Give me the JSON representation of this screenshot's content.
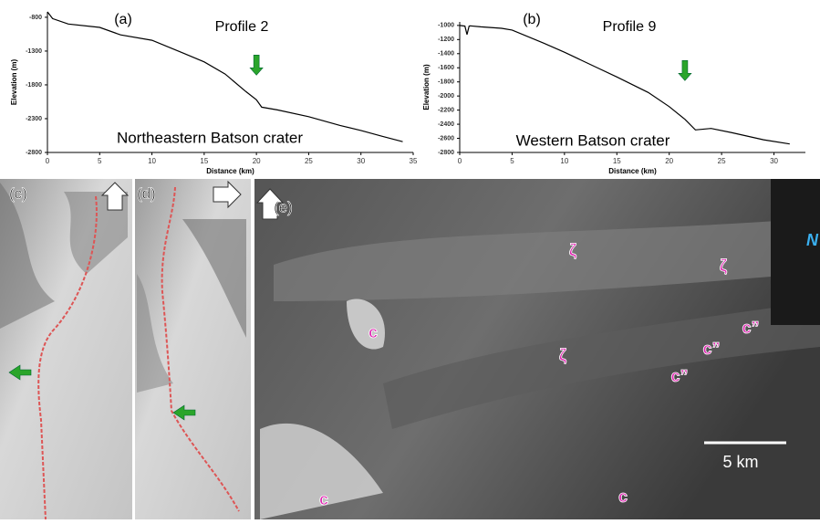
{
  "chart_data": [
    {
      "type": "line",
      "panel_label": "(a)",
      "title": "Profile 2",
      "annotation": "Northeastern Batson crater",
      "x_label": "Distance (km)",
      "y_label": "Elevation (m)",
      "color": "#000000",
      "x": [
        0,
        0.5,
        2,
        5,
        7,
        10,
        13,
        15,
        17,
        19,
        20,
        20.5,
        22,
        25,
        28,
        30,
        32,
        34
      ],
      "values": [
        -720,
        -820,
        -900,
        -950,
        -1060,
        -1140,
        -1330,
        -1460,
        -1640,
        -1900,
        -2020,
        -2130,
        -2170,
        -2270,
        -2400,
        -2475,
        -2560,
        -2640
      ],
      "xlim": [
        0,
        35
      ],
      "xticks": [
        0,
        5,
        10,
        15,
        20,
        25,
        30,
        35
      ],
      "ylim": [
        -2800,
        -720
      ],
      "yticks": [
        -800,
        -1300,
        -1800,
        -2300,
        -2800
      ]
    },
    {
      "type": "line",
      "panel_label": "(b)",
      "title": "Profile 9",
      "annotation": "Western Batson crater",
      "x_label": "Distance (km)",
      "y_label": "Elevation (m)",
      "color": "#000000",
      "x": [
        0,
        0.5,
        0.7,
        0.9,
        1,
        2,
        4,
        5,
        8,
        10,
        13,
        15,
        18,
        20,
        21.5,
        22.5,
        24,
        26,
        29,
        31.5
      ],
      "values": [
        -1000,
        -1010,
        -1130,
        -1010,
        -1005,
        -1020,
        -1040,
        -1065,
        -1250,
        -1380,
        -1590,
        -1730,
        -1950,
        -2150,
        -2330,
        -2480,
        -2460,
        -2520,
        -2620,
        -2680
      ],
      "xlim": [
        0,
        33
      ],
      "xticks": [
        0,
        5,
        10,
        15,
        20,
        25,
        30
      ],
      "ylim": [
        -2800,
        -950
      ],
      "yticks": [
        -1000,
        -1200,
        -1400,
        -1600,
        -1800,
        -2000,
        -2200,
        -2400,
        -2600,
        -2800
      ]
    }
  ],
  "image_panels": {
    "labels": [
      "(c)",
      "(d)",
      "(e)"
    ],
    "annotations": [
      "ζ",
      "ζ",
      "ζ",
      "c",
      "c",
      "c",
      "c”",
      "c”",
      "c”"
    ],
    "scale_bar": "5 km",
    "north": "N"
  }
}
